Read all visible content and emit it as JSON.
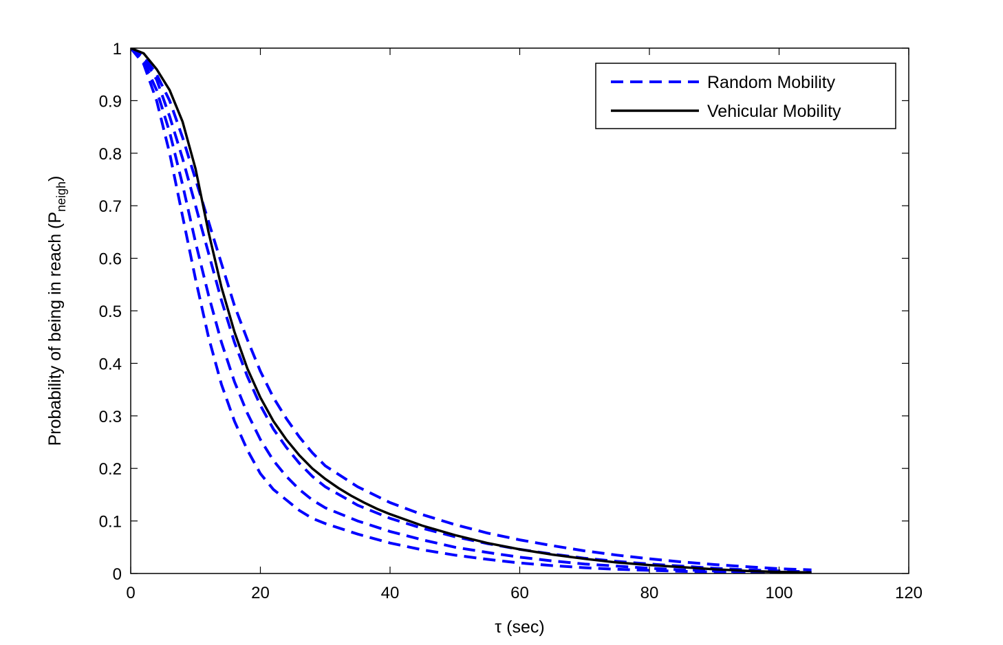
{
  "chart_data": {
    "type": "line",
    "title": "",
    "xlabel": "τ  (sec)",
    "ylabel": "Probability of being in reach (P",
    "ylabel_sub": "neigh",
    "ylabel_close": ")",
    "xlim": [
      0,
      120
    ],
    "ylim": [
      0,
      1
    ],
    "xticks": [
      "0",
      "20",
      "40",
      "60",
      "80",
      "100",
      "120"
    ],
    "yticks": [
      "0",
      "0.1",
      "0.2",
      "0.3",
      "0.4",
      "0.5",
      "0.6",
      "0.7",
      "0.8",
      "0.9",
      "1"
    ],
    "grid": false,
    "legend_position": "top-right",
    "legend": [
      {
        "label": "Random Mobility",
        "style": "dashed",
        "color": "#0000ff"
      },
      {
        "label": "Vehicular Mobility",
        "style": "solid",
        "color": "#000000"
      }
    ],
    "series": [
      {
        "name": "Random Mobility",
        "color": "#0000ff",
        "style": "dashed",
        "curves": [
          {
            "x": [
              0,
              2,
              4,
              6,
              8,
              10,
              12,
              14,
              16,
              18,
              20,
              22,
              24,
              26,
              28,
              30,
              35,
              40,
              45,
              50,
              55,
              60,
              65,
              70,
              75,
              80,
              85,
              90,
              95,
              100,
              105
            ],
            "y": [
              1,
              0.97,
              0.9,
              0.8,
              0.68,
              0.56,
              0.45,
              0.36,
              0.29,
              0.235,
              0.19,
              0.16,
              0.14,
              0.12,
              0.105,
              0.095,
              0.075,
              0.058,
              0.045,
              0.035,
              0.027,
              0.02,
              0.015,
              0.011,
              0.008,
              0.006,
              0.004,
              0.003,
              0.002,
              0.001,
              0.0005
            ]
          },
          {
            "x": [
              0,
              2,
              4,
              6,
              8,
              10,
              12,
              14,
              16,
              18,
              20,
              22,
              24,
              26,
              28,
              30,
              35,
              40,
              45,
              50,
              55,
              60,
              65,
              70,
              75,
              80,
              85,
              90,
              95,
              100,
              105
            ],
            "y": [
              1,
              0.975,
              0.92,
              0.84,
              0.74,
              0.63,
              0.53,
              0.44,
              0.365,
              0.305,
              0.255,
              0.215,
              0.185,
              0.16,
              0.14,
              0.125,
              0.1,
              0.08,
              0.064,
              0.05,
              0.04,
              0.031,
              0.024,
              0.018,
              0.014,
              0.01,
              0.007,
              0.005,
              0.003,
              0.002,
              0.001
            ]
          },
          {
            "x": [
              0,
              2,
              4,
              6,
              8,
              10,
              12,
              14,
              16,
              18,
              20,
              22,
              24,
              26,
              28,
              30,
              35,
              40,
              45,
              50,
              55,
              60,
              65,
              70,
              75,
              80,
              85,
              90,
              95,
              100,
              105
            ],
            "y": [
              1,
              0.98,
              0.94,
              0.87,
              0.79,
              0.7,
              0.61,
              0.52,
              0.44,
              0.375,
              0.32,
              0.275,
              0.24,
              0.21,
              0.185,
              0.165,
              0.13,
              0.105,
              0.086,
              0.07,
              0.057,
              0.046,
              0.037,
              0.029,
              0.023,
              0.018,
              0.014,
              0.01,
              0.007,
              0.005,
              0.003
            ]
          },
          {
            "x": [
              0,
              2,
              4,
              6,
              8,
              10,
              12,
              14,
              16,
              18,
              20,
              22,
              24,
              26,
              28,
              30,
              35,
              40,
              45,
              50,
              55,
              60,
              65,
              70,
              75,
              80,
              85,
              90,
              95,
              100,
              105
            ],
            "y": [
              1,
              0.985,
              0.95,
              0.9,
              0.83,
              0.75,
              0.67,
              0.59,
              0.51,
              0.445,
              0.385,
              0.335,
              0.295,
              0.26,
              0.23,
              0.205,
              0.165,
              0.135,
              0.112,
              0.093,
              0.077,
              0.064,
              0.053,
              0.043,
              0.035,
              0.028,
              0.022,
              0.017,
              0.013,
              0.009,
              0.007
            ]
          }
        ]
      },
      {
        "name": "Vehicular Mobility",
        "color": "#000000",
        "style": "solid",
        "x": [
          0,
          2,
          4,
          6,
          8,
          10,
          12,
          14,
          16,
          18,
          20,
          22,
          24,
          26,
          28,
          30,
          32,
          34,
          36,
          38,
          40,
          45,
          50,
          55,
          60,
          65,
          70,
          75,
          80,
          85,
          90,
          95,
          100,
          105
        ],
        "y": [
          1,
          0.99,
          0.96,
          0.92,
          0.86,
          0.77,
          0.65,
          0.545,
          0.46,
          0.39,
          0.335,
          0.29,
          0.255,
          0.225,
          0.2,
          0.18,
          0.163,
          0.148,
          0.135,
          0.123,
          0.113,
          0.091,
          0.073,
          0.058,
          0.046,
          0.036,
          0.028,
          0.021,
          0.016,
          0.012,
          0.008,
          0.005,
          0.003,
          0.002
        ]
      }
    ]
  }
}
